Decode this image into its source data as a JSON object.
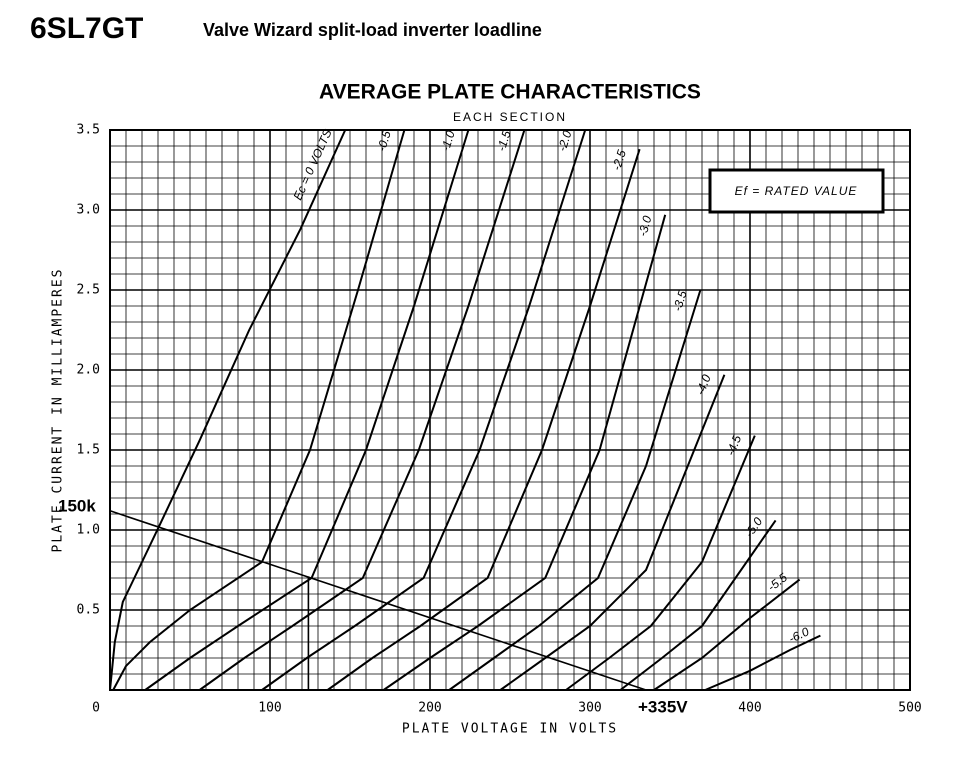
{
  "header": {
    "title": "6SL7GT",
    "subtitle": "Valve Wizard split-load inverter loadline"
  },
  "chart_data": {
    "type": "line",
    "title": "AVERAGE PLATE CHARACTERISTICS",
    "subtitle": "EACH SECTION",
    "x_label": "PLATE VOLTAGE IN VOLTS",
    "y_label": "PLATE CURRENT IN MILLIAMPERES",
    "note": "Ef = RATED VALUE",
    "xlim": [
      0,
      500
    ],
    "ylim": [
      0,
      3.5
    ],
    "xticks": [
      0,
      100,
      200,
      300,
      400,
      500
    ],
    "yticks": [
      0.5,
      {
        "value": 1,
        "label": "1.0"
      },
      1.5,
      {
        "value": 2,
        "label": "2.0"
      },
      2.5,
      {
        "value": 3,
        "label": "3.0"
      },
      3.5
    ],
    "grid": true,
    "xminor": 10,
    "yminor": 0.1,
    "color": "#000000",
    "series": [
      {
        "name": "Ec = 0 VOLTS",
        "x": [
          0,
          3,
          8,
          20,
          31,
          56,
          87,
          119,
          147
        ],
        "values": [
          0,
          0.3,
          0.55,
          0.8,
          1.03,
          1.56,
          2.25,
          2.88,
          3.5
        ]
      },
      {
        "name": "-0.5",
        "x": [
          2,
          10,
          25,
          50,
          95,
          125,
          155,
          184
        ],
        "values": [
          0,
          0.15,
          0.3,
          0.5,
          0.8,
          1.5,
          2.5,
          3.5
        ]
      },
      {
        "name": "-1.0",
        "x": [
          22,
          50,
          80,
          126,
          160,
          190,
          224
        ],
        "values": [
          0,
          0.2,
          0.4,
          0.7,
          1.5,
          2.4,
          3.5
        ]
      },
      {
        "name": "-1.5",
        "x": [
          56,
          84,
          114,
          158,
          193,
          224,
          259
        ],
        "values": [
          0,
          0.2,
          0.4,
          0.7,
          1.5,
          2.4,
          3.5
        ]
      },
      {
        "name": "-2.0",
        "x": [
          95,
          123,
          153,
          196,
          231,
          262,
          297
        ],
        "values": [
          0,
          0.2,
          0.4,
          0.7,
          1.5,
          2.4,
          3.5
        ]
      },
      {
        "name": "-2.5",
        "x": [
          136,
          164,
          194,
          236,
          270,
          300,
          331
        ],
        "values": [
          0,
          0.2,
          0.4,
          0.7,
          1.5,
          2.4,
          3.38
        ]
      },
      {
        "name": "-3.0",
        "x": [
          171,
          200,
          230,
          272,
          306,
          347
        ],
        "values": [
          0,
          0.2,
          0.4,
          0.7,
          1.5,
          2.97
        ]
      },
      {
        "name": "-3.5",
        "x": [
          212,
          240,
          268,
          305,
          335,
          369
        ],
        "values": [
          0,
          0.2,
          0.4,
          0.7,
          1.4,
          2.5
        ]
      },
      {
        "name": "-4.0",
        "x": [
          244,
          272,
          300,
          335,
          384
        ],
        "values": [
          0,
          0.2,
          0.4,
          0.75,
          1.97
        ]
      },
      {
        "name": "-4.5",
        "x": [
          285,
          312,
          338,
          370,
          403
        ],
        "values": [
          0,
          0.2,
          0.4,
          0.8,
          1.59
        ]
      },
      {
        "name": "-5.0",
        "x": [
          319,
          345,
          370,
          416
        ],
        "values": [
          0,
          0.2,
          0.4,
          1.06
        ]
      },
      {
        "name": "-5.5",
        "x": [
          340,
          370,
          400,
          431
        ],
        "values": [
          0,
          0.2,
          0.45,
          0.69
        ]
      },
      {
        "name": "-6.0",
        "x": [
          372,
          400,
          425,
          444
        ],
        "values": [
          0,
          0.12,
          0.25,
          0.34
        ]
      }
    ],
    "loadline": {
      "label": "150k",
      "end_label": "+335V",
      "x": [
        0,
        335
      ],
      "values": [
        1.12,
        0
      ]
    },
    "operating_point": {
      "x": 124,
      "y": 0.71
    }
  }
}
